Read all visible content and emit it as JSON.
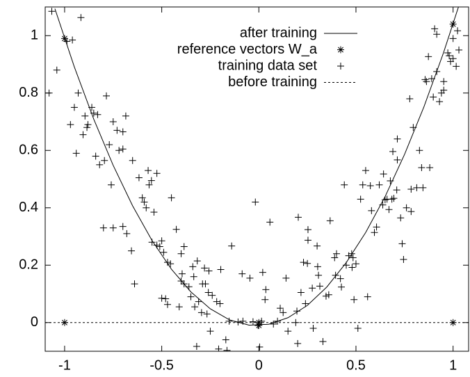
{
  "chart_data": {
    "type": "scatter",
    "xlim": [
      -1.1,
      1.08
    ],
    "ylim": [
      -0.1,
      1.1
    ],
    "xticks": [
      -1,
      -0.5,
      0,
      0.5,
      1
    ],
    "yticks": [
      0,
      0.2,
      0.4,
      0.6,
      0.8,
      1
    ],
    "series": [
      {
        "name": "after training",
        "color": "#000000",
        "line": "solid",
        "x": [
          -1.05,
          -0.95,
          -0.85,
          -0.75,
          -0.65,
          -0.55,
          -0.45,
          -0.35,
          -0.25,
          -0.15,
          -0.05,
          0.05,
          0.15,
          0.25,
          0.35,
          0.45,
          0.55,
          0.65,
          0.75,
          0.85,
          0.95,
          1.05
        ],
        "values": [
          1.094,
          0.891,
          0.709,
          0.548,
          0.407,
          0.286,
          0.186,
          0.107,
          0.048,
          0.009,
          -0.009,
          -0.006,
          0.017,
          0.06,
          0.124,
          0.209,
          0.314,
          0.439,
          0.586,
          0.752,
          0.939,
          1.146
        ]
      },
      {
        "name": "reference vectors W_a",
        "color": "#000000",
        "marker": "star",
        "x": [
          -1,
          0,
          1,
          -1,
          0,
          1
        ],
        "values": [
          0.99,
          -0.01,
          1.04,
          0,
          0,
          0
        ]
      },
      {
        "name": "training data set",
        "color": "#000000",
        "marker": "plus",
        "x": [
          -1.066,
          -0.916,
          -0.988,
          -0.96,
          -1.04,
          -1.08,
          -0.93,
          -0.95,
          -0.97,
          -0.94,
          -0.895,
          -0.905,
          -0.885,
          -0.88,
          -0.86,
          -0.85,
          -0.83,
          -0.785,
          -0.84,
          -0.82,
          -0.795,
          -0.77,
          -0.75,
          -0.73,
          -0.72,
          -0.7,
          -0.76,
          -0.685,
          -0.7,
          -0.8,
          -0.75,
          -0.7,
          -0.68,
          -0.656,
          -0.64,
          -0.65,
          -0.617,
          -0.6,
          -0.59,
          -0.58,
          -0.57,
          -0.565,
          -0.553,
          -0.54,
          -0.525,
          -0.45,
          -0.55,
          -0.525,
          -0.51,
          -0.5,
          -0.49,
          -0.47,
          -0.455,
          -0.5,
          -0.48,
          -0.47,
          -0.425,
          -0.4,
          -0.385,
          -0.395,
          -0.4,
          -0.385,
          -0.36,
          -0.34,
          -0.335,
          -0.317,
          -0.41,
          -0.35,
          -0.31,
          -0.33,
          -0.295,
          -0.28,
          -0.257,
          -0.29,
          -0.275,
          -0.26,
          -0.24,
          -0.217,
          -0.2,
          -0.196,
          -0.267,
          -0.25,
          -0.32,
          -0.207,
          -0.17,
          -0.164,
          -0.14,
          -0.153,
          -0.107,
          -0.082,
          -0.086,
          -0.046,
          -0.03,
          -0.018,
          -0.004,
          0.004,
          0.014,
          0.032,
          0.036,
          0.02,
          0.057,
          0.075,
          0.096,
          0.11,
          0.125,
          0.14,
          0.15,
          0.19,
          0.2,
          0.196,
          0.203,
          0.217,
          0.23,
          0.24,
          0.25,
          0.253,
          0.275,
          0.28,
          0.3,
          0.303,
          0.307,
          0.314,
          0.253,
          0.33,
          0.346,
          0.36,
          0.367,
          0.39,
          0.4,
          0.395,
          0.42,
          0.44,
          0.425,
          0.45,
          0.463,
          0.478,
          0.48,
          0.49,
          0.485,
          0.5,
          0.51,
          0.524,
          0.535,
          0.55,
          0.56,
          0.574,
          0.58,
          0.595,
          0.606,
          0.62,
          0.638,
          0.65,
          0.642,
          0.66,
          0.67,
          0.677,
          0.685,
          0.69,
          0.713,
          0.713,
          0.695,
          0.71,
          0.73,
          0.738,
          0.745,
          0.76,
          0.777,
          0.784,
          0.784,
          0.795,
          0.813,
          0.827,
          0.838,
          0.845,
          0.856,
          0.863,
          0.88,
          0.89,
          0.898,
          0.905,
          0.916,
          0.93,
          0.94,
          0.952,
          0.952,
          0.973,
          0.98,
          0.987,
          1.0,
          1.0,
          1.016,
          1.023,
          1.03,
          0.916,
          0.873
        ],
        "values": [
          1.085,
          1.063,
          0.98,
          0.985,
          0.88,
          0.8,
          0.8,
          0.75,
          0.69,
          0.59,
          0.72,
          0.655,
          0.68,
          0.69,
          0.75,
          0.73,
          0.725,
          0.79,
          0.58,
          0.55,
          0.565,
          0.62,
          0.7,
          0.67,
          0.6,
          0.605,
          0.48,
          0.72,
          0.665,
          0.33,
          0.33,
          0.335,
          0.31,
          0.25,
          0.135,
          0.565,
          0.505,
          0.435,
          0.42,
          0.4,
          0.53,
          0.48,
          0.495,
          0.385,
          0.52,
          0.435,
          0.28,
          0.27,
          0.265,
          0.285,
          0.245,
          0.21,
          0.205,
          0.085,
          0.083,
          0.063,
          0.325,
          0.24,
          0.265,
          0.17,
          0.145,
          0.135,
          0.125,
          0.195,
          0.16,
          0.215,
          0.055,
          0.09,
          0.073,
          0.055,
          0.035,
          0.19,
          0.18,
          0.135,
          0.135,
          0.105,
          0.095,
          0.073,
          0.066,
          0.185,
          0.03,
          -0.03,
          -0.083,
          -0.092,
          -0.06,
          -0.097,
          0.267,
          0.005,
          0.002,
          0.005,
          0.17,
          0.155,
          0.003,
          0.42,
          -0.01,
          -0.085,
          0.005,
          0.08,
          0.115,
          0.175,
          0.35,
          -0.005,
          0.005,
          0.05,
          0.035,
          0.155,
          -0.03,
          0,
          -0.073,
          0.04,
          0.367,
          0.105,
          0.21,
          0.066,
          0.206,
          0.287,
          0.12,
          -0.02,
          0.267,
          0.195,
          0.165,
          0.127,
          0.324,
          -0.066,
          0.092,
          0.097,
          0.355,
          0.226,
          0.24,
          0.165,
          0.153,
          0.48,
          0.124,
          0.2,
          0.233,
          0.24,
          0.192,
          0.08,
          0.226,
          0.205,
          -0.02,
          0.43,
          0.48,
          0.53,
          0.09,
          0.477,
          0.39,
          0.314,
          0.333,
          0.48,
          0.41,
          0.428,
          0.518,
          0.43,
          0.394,
          0.494,
          0.43,
          0.596,
          0.567,
          0.64,
          0.433,
          0.462,
          0.365,
          0.275,
          0.22,
          0.4,
          0.78,
          0.465,
          0.387,
          0.68,
          0.47,
          0.6,
          0.54,
          0.47,
          0.847,
          0.84,
          0.54,
          0.85,
          0.786,
          1.024,
          0.875,
          0.77,
          0.8,
          0.84,
          0.81,
          0.94,
          0.93,
          0.91,
          0.92,
          0.99,
          0.893,
          1.017,
          0.95,
          1.005,
          0.927
        ]
      },
      {
        "name": "before training",
        "color": "#000000",
        "line": "dashed",
        "x": [
          -1.1,
          1.08
        ],
        "values": [
          0,
          0
        ]
      }
    ]
  }
}
